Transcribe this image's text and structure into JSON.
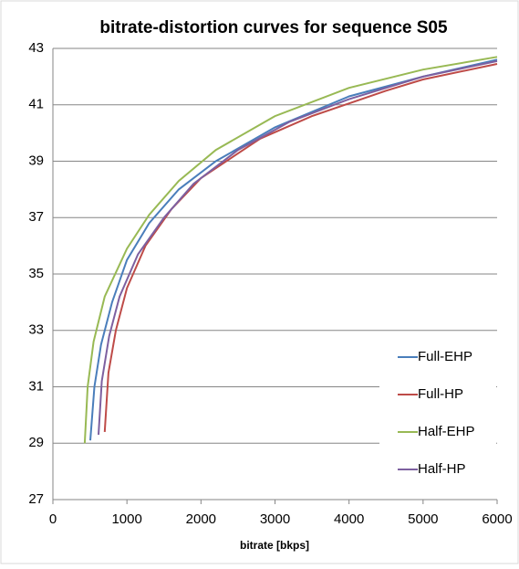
{
  "chart_data": {
    "type": "line",
    "title": "bitrate-distortion curves for sequence S05",
    "x_label": "bitrate [bkps]",
    "xlim": [
      0,
      6000
    ],
    "xticks": [
      0,
      1000,
      2000,
      3000,
      4000,
      5000,
      6000
    ],
    "ylim": [
      27,
      43
    ],
    "yticks": [
      27,
      29,
      31,
      33,
      35,
      37,
      39,
      41,
      43
    ],
    "grid": true,
    "legend": "right",
    "series": [
      {
        "name": "Full-EHP",
        "color": "#4a7ebb",
        "x": [
          505,
          560,
          650,
          800,
          1000,
          1300,
          1700,
          2200,
          3000,
          4000,
          5000,
          6000
        ],
        "values": [
          29.1,
          31,
          32.5,
          34,
          35.5,
          36.8,
          38,
          39,
          40.2,
          41.3,
          42,
          42.6
        ]
      },
      {
        "name": "Full-HP",
        "color": "#be4b48",
        "x": [
          700,
          750,
          850,
          1000,
          1250,
          1600,
          2000,
          2800,
          3500,
          4500,
          5000,
          6000
        ],
        "values": [
          29.4,
          31.5,
          33,
          34.5,
          36,
          37.3,
          38.4,
          39.8,
          40.6,
          41.5,
          41.9,
          42.45
        ]
      },
      {
        "name": "Half-EHP",
        "color": "#98b954",
        "x": [
          430,
          470,
          550,
          700,
          1000,
          1300,
          1700,
          2200,
          3000,
          4000,
          5000,
          6000
        ],
        "values": [
          29,
          31,
          32.6,
          34.2,
          35.9,
          37.1,
          38.3,
          39.4,
          40.6,
          41.6,
          42.25,
          42.7
        ]
      },
      {
        "name": "Half-HP",
        "color": "#7d60a0",
        "x": [
          616,
          660,
          760,
          900,
          1150,
          1500,
          1900,
          2500,
          3200,
          4000,
          5000,
          6000
        ],
        "values": [
          29.3,
          31.2,
          32.8,
          34.2,
          35.7,
          37,
          38.2,
          39.4,
          40.4,
          41.2,
          42,
          42.55
        ]
      }
    ]
  }
}
